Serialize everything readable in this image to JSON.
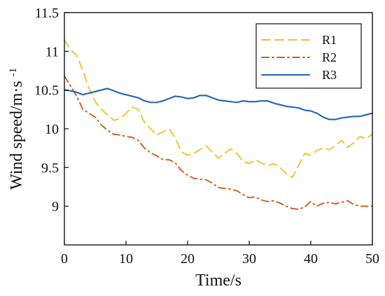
{
  "chart_data": {
    "type": "line",
    "title": "",
    "xlabel": "Time/s",
    "ylabel": {
      "main": "Wind speed/m·s",
      "superscript": "-1"
    },
    "xlim": [
      0,
      50
    ],
    "ylim": [
      8.5,
      11.5
    ],
    "xticks": [
      0,
      10,
      20,
      30,
      40,
      50
    ],
    "yticks": [
      9,
      9.5,
      10,
      10.5,
      11,
      11.5
    ],
    "x_tick_labels": [
      "0",
      "10",
      "20",
      "30",
      "40",
      "50"
    ],
    "y_tick_labels": [
      "9",
      "9.5",
      "10",
      "10.5",
      "11",
      "11.5"
    ],
    "grid": false,
    "legend_position": "top-right",
    "series": [
      {
        "name": "R1",
        "color": "#F2C230",
        "line_style": "dashed",
        "x": [
          0,
          1,
          2,
          3,
          4,
          5,
          6,
          7,
          8,
          9,
          10,
          11,
          12,
          13,
          14,
          15,
          16,
          17,
          18,
          19,
          20,
          21,
          22,
          23,
          24,
          25,
          26,
          27,
          28,
          29,
          30,
          31,
          32,
          33,
          34,
          35,
          36,
          37,
          38,
          39,
          40,
          41,
          42,
          43,
          44,
          45,
          46,
          47,
          48,
          49,
          50
        ],
        "values": [
          11.15,
          11.02,
          10.95,
          10.75,
          10.52,
          10.35,
          10.25,
          10.18,
          10.11,
          10.13,
          10.2,
          10.28,
          10.25,
          10.08,
          10.0,
          9.92,
          9.96,
          10.0,
          9.88,
          9.7,
          9.66,
          9.68,
          9.73,
          9.78,
          9.7,
          9.62,
          9.68,
          9.74,
          9.68,
          9.58,
          9.55,
          9.6,
          9.56,
          9.52,
          9.55,
          9.5,
          9.42,
          9.37,
          9.52,
          9.68,
          9.66,
          9.72,
          9.75,
          9.73,
          9.78,
          9.85,
          9.76,
          9.82,
          9.9,
          9.87,
          9.93
        ]
      },
      {
        "name": "R2",
        "color": "#D85A1A",
        "line_style": "dashdot",
        "x": [
          0,
          1,
          2,
          3,
          4,
          5,
          6,
          7,
          8,
          9,
          10,
          11,
          12,
          13,
          14,
          15,
          16,
          17,
          18,
          19,
          20,
          21,
          22,
          23,
          24,
          25,
          26,
          27,
          28,
          29,
          30,
          31,
          32,
          33,
          34,
          35,
          36,
          37,
          38,
          39,
          40,
          41,
          42,
          43,
          44,
          45,
          46,
          47,
          48,
          49,
          50
        ],
        "values": [
          10.68,
          10.55,
          10.42,
          10.25,
          10.2,
          10.15,
          10.05,
          9.98,
          9.93,
          9.92,
          9.9,
          9.89,
          9.85,
          9.75,
          9.69,
          9.65,
          9.6,
          9.6,
          9.56,
          9.46,
          9.4,
          9.36,
          9.35,
          9.34,
          9.3,
          9.24,
          9.23,
          9.22,
          9.2,
          9.15,
          9.11,
          9.12,
          9.08,
          9.06,
          9.07,
          9.04,
          9.0,
          8.97,
          8.96,
          8.99,
          9.06,
          9.0,
          9.04,
          9.05,
          9.03,
          9.05,
          9.07,
          9.02,
          9.0,
          9.0,
          9.0
        ]
      },
      {
        "name": "R3",
        "color": "#1F64B2",
        "line_style": "solid",
        "x": [
          0,
          1,
          2,
          3,
          4,
          5,
          6,
          7,
          8,
          9,
          10,
          11,
          12,
          13,
          14,
          15,
          16,
          17,
          18,
          19,
          20,
          21,
          22,
          23,
          24,
          25,
          26,
          27,
          28,
          29,
          30,
          31,
          32,
          33,
          34,
          35,
          36,
          37,
          38,
          39,
          40,
          41,
          42,
          43,
          44,
          45,
          46,
          47,
          48,
          49,
          50
        ],
        "values": [
          10.5,
          10.49,
          10.47,
          10.44,
          10.46,
          10.48,
          10.5,
          10.52,
          10.49,
          10.46,
          10.44,
          10.42,
          10.4,
          10.36,
          10.34,
          10.34,
          10.36,
          10.39,
          10.42,
          10.41,
          10.39,
          10.4,
          10.43,
          10.43,
          10.4,
          10.37,
          10.36,
          10.35,
          10.34,
          10.36,
          10.35,
          10.35,
          10.36,
          10.36,
          10.33,
          10.31,
          10.29,
          10.28,
          10.27,
          10.24,
          10.23,
          10.2,
          10.15,
          10.12,
          10.12,
          10.14,
          10.15,
          10.16,
          10.16,
          10.18,
          10.2
        ]
      }
    ]
  }
}
